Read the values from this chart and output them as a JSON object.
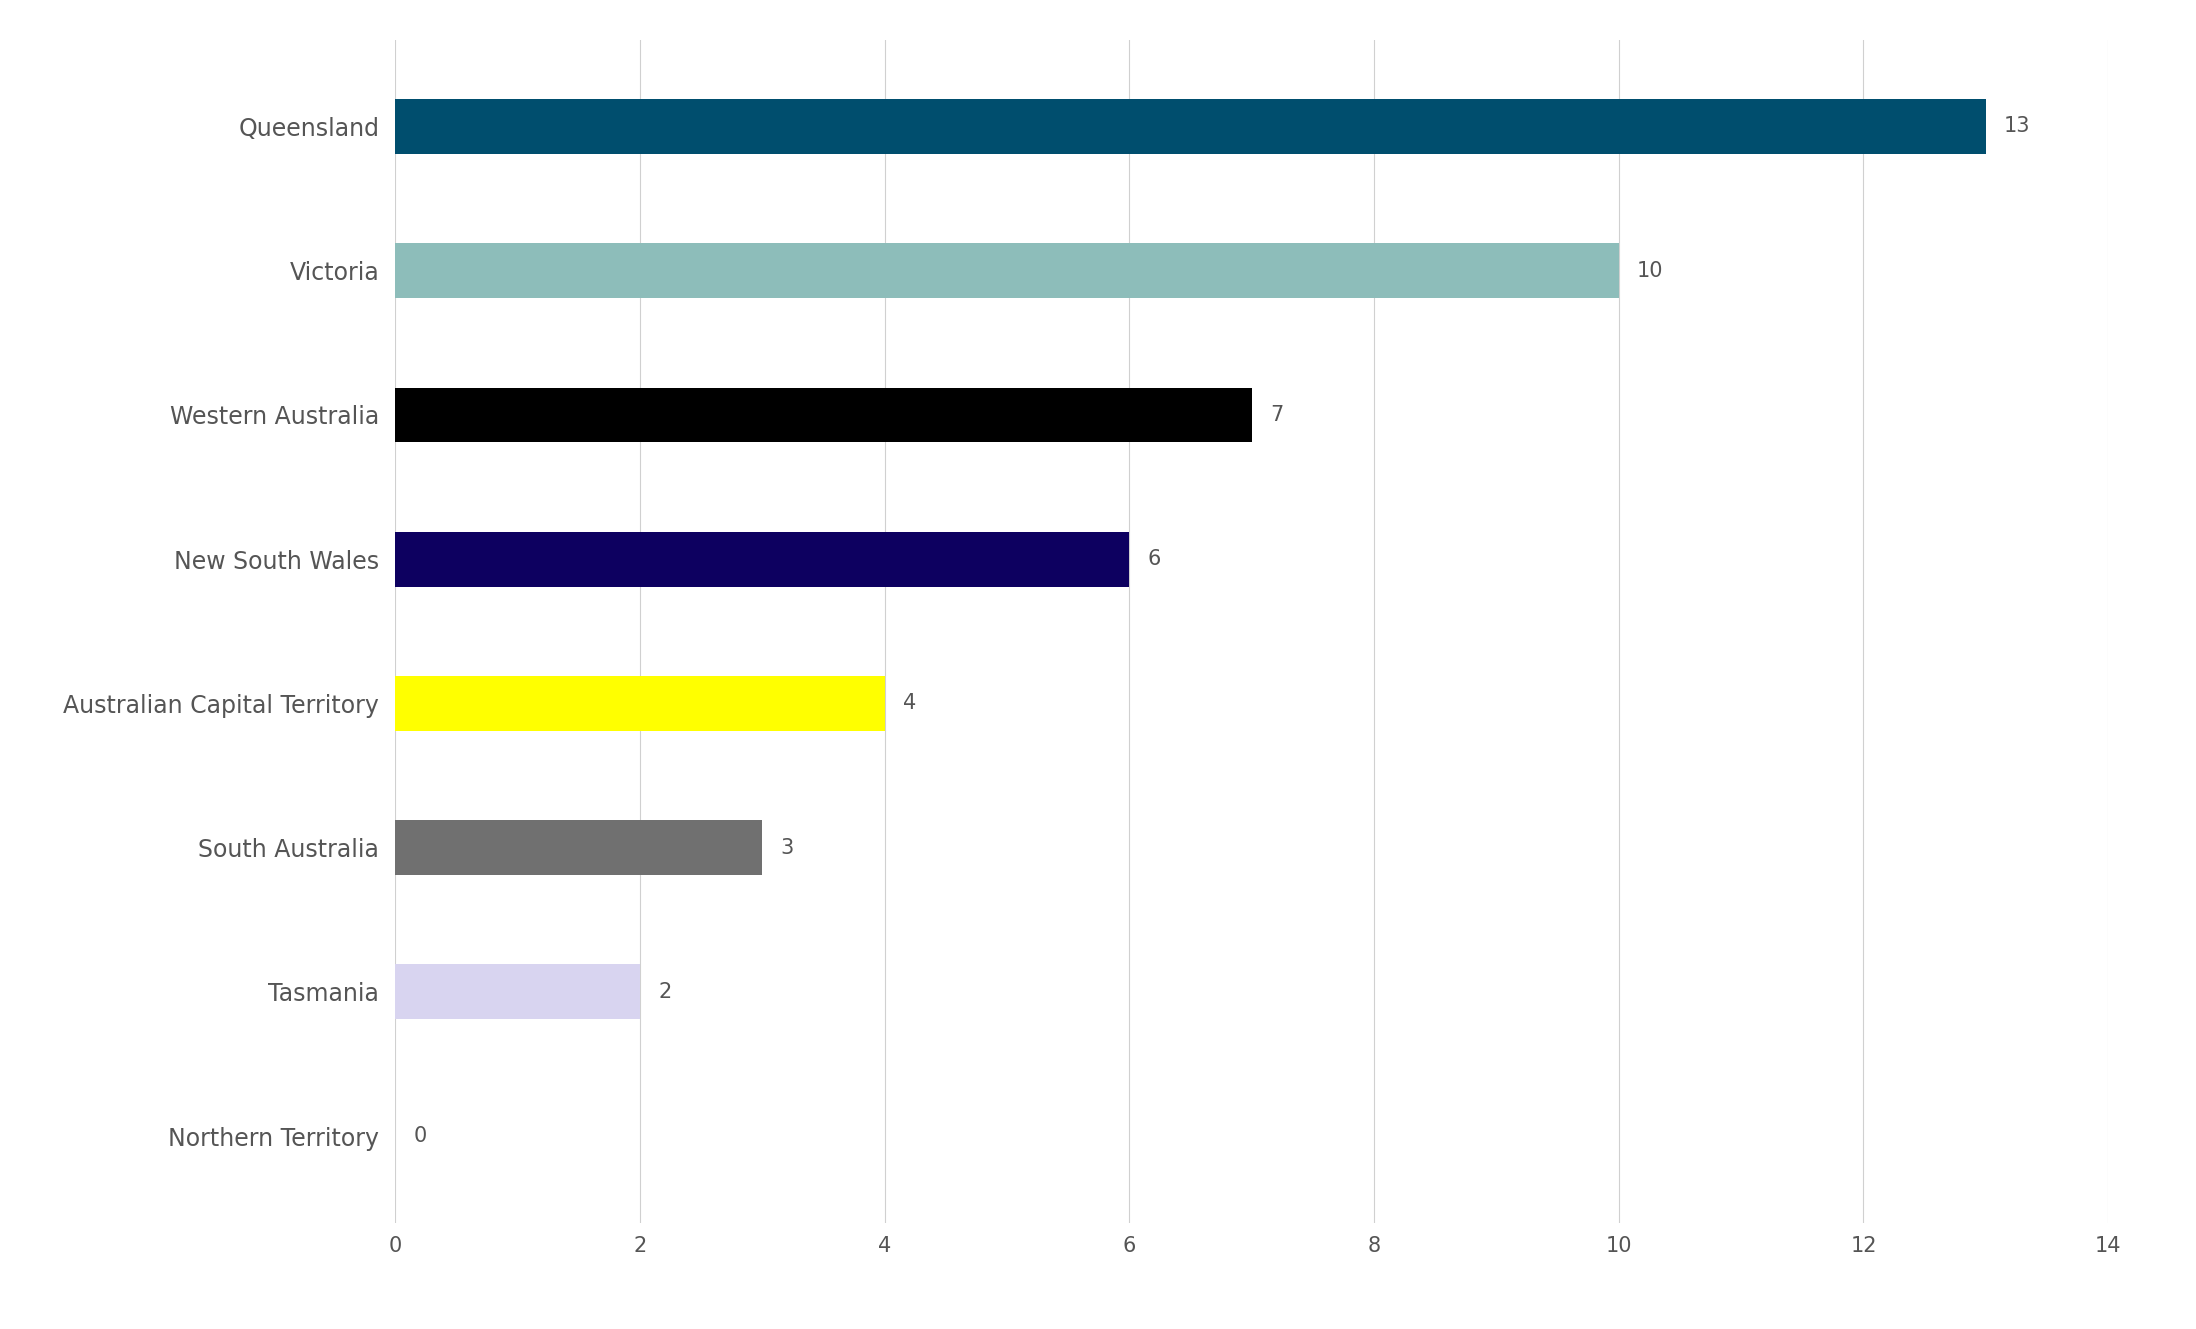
{
  "categories": [
    "Northern Territory",
    "Tasmania",
    "South Australia",
    "Australian Capital Territory",
    "New South Wales",
    "Western Australia",
    "Victoria",
    "Queensland"
  ],
  "values": [
    0,
    2,
    3,
    4,
    6,
    7,
    10,
    13
  ],
  "bar_colors": [
    "#ffffff",
    "#d8d4f0",
    "#707070",
    "#ffff00",
    "#0d0060",
    "#000000",
    "#8dbdba",
    "#004e6e"
  ],
  "bar_edge_colors": [
    "#cccccc",
    "#d8d4f0",
    "#707070",
    "#ffff00",
    "#0d0060",
    "#000000",
    "#8dbdba",
    "#004e6e"
  ],
  "xlim": [
    0,
    14
  ],
  "xticks": [
    0,
    2,
    4,
    6,
    8,
    10,
    12,
    14
  ],
  "label_fontsize": 17,
  "tick_fontsize": 15,
  "value_fontsize": 15,
  "background_color": "#ffffff",
  "grid_color": "#d0d0d0",
  "bar_height": 0.38,
  "label_color": "#555555",
  "value_color": "#555555"
}
